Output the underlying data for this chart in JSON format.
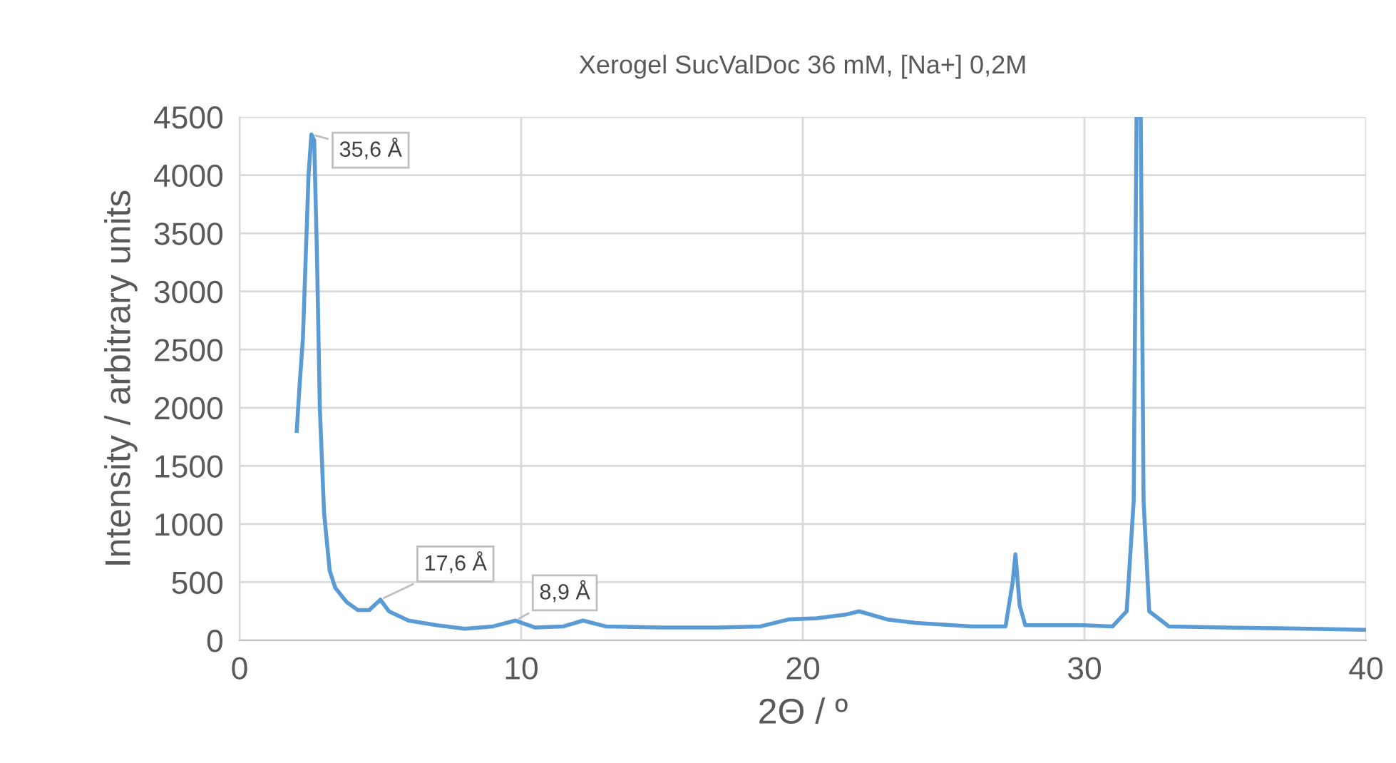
{
  "chart_data": {
    "type": "line",
    "title": "Xerogel SucValDoc 36 mM, [Na+] 0,2M",
    "xlabel": "2Θ / º",
    "ylabel": "Intensity / arbitrary units",
    "xlim": [
      0,
      40
    ],
    "xticks": [
      0,
      10,
      20,
      30,
      40
    ],
    "ylim": [
      0,
      4500
    ],
    "yticks": [
      0,
      500,
      1000,
      1500,
      2000,
      2500,
      3000,
      3500,
      4000,
      4500
    ],
    "grid": true,
    "legend": false,
    "marker": "none",
    "line_style": "solid",
    "series": [
      {
        "color": "#5b9bd5",
        "x": [
          2.03,
          2.12,
          2.25,
          2.35,
          2.45,
          2.55,
          2.65,
          2.75,
          2.85,
          3.0,
          3.2,
          3.4,
          3.8,
          4.2,
          4.6,
          5.0,
          5.3,
          6.0,
          7.0,
          8.0,
          9.0,
          9.8,
          10.5,
          11.5,
          12.2,
          13.0,
          15.0,
          17.0,
          18.5,
          19.5,
          20.5,
          21.5,
          22.0,
          23.0,
          24.0,
          26.0,
          27.2,
          27.45,
          27.55,
          27.7,
          27.9,
          29.0,
          30.0,
          31.0,
          31.5,
          31.75,
          31.85,
          32.0,
          32.1,
          32.3,
          33.0,
          35.0,
          38.0,
          40.0
        ],
        "values": [
          1800,
          2150,
          2600,
          3300,
          4000,
          4350,
          4300,
          3300,
          2000,
          1100,
          600,
          450,
          330,
          260,
          260,
          350,
          250,
          170,
          130,
          100,
          120,
          170,
          110,
          120,
          170,
          120,
          110,
          110,
          120,
          180,
          190,
          220,
          250,
          180,
          150,
          120,
          120,
          500,
          740,
          300,
          130,
          130,
          130,
          120,
          250,
          1200,
          4500,
          4500,
          1200,
          250,
          120,
          110,
          100,
          90
        ]
      }
    ],
    "annotations": [
      {
        "text": "35,6 Å",
        "x": 2.55,
        "y": 4350
      },
      {
        "text": "17,6 Å",
        "x": 5.0,
        "y": 350
      },
      {
        "text": "8,9 Å",
        "x": 9.8,
        "y": 170
      }
    ]
  }
}
